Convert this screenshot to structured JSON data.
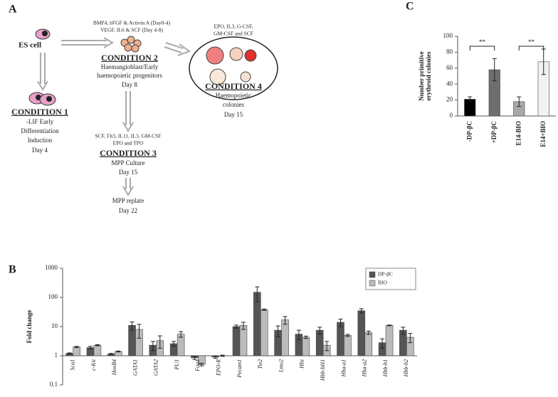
{
  "panel_a": {
    "panel_label": "A",
    "nodes": [
      {
        "lines": [
          "ES cell"
        ]
      },
      {
        "lines": [
          "BMP4, bFGF & Activin A (Day0-4)",
          "VEGF, IL6 & SCF (Day 4-8)"
        ]
      },
      {
        "lines": [
          "CONDITION 2",
          "Haemangioblast/Early",
          "haemopoietic progenitors",
          "Day 8"
        ]
      },
      {
        "lines": [
          "EPO, IL3, G-CSF,",
          "GM-CSF and SCF"
        ]
      },
      {
        "lines": [
          "CONDITION 4",
          "Haemopoietic",
          "colonies",
          "Day 15"
        ]
      },
      {
        "lines": [
          "CONDITION 1",
          "-LIF Early",
          "Differentiation",
          "Induction",
          "Day 4"
        ]
      },
      {
        "lines": [
          "SCF, Flt3, IL11, IL3, GM-CSF",
          "EPO and TPO"
        ]
      },
      {
        "lines": [
          "CONDITION 3",
          "MPP Culture",
          "Day 15"
        ]
      },
      {
        "lines": [
          "MPP replate",
          "Day 22"
        ]
      }
    ]
  },
  "chart_data": [
    {
      "type": "bar",
      "panel_label": "C",
      "ylabel": [
        "Number primitive",
        "erythroid colonies"
      ],
      "categories": [
        "-DP-βC",
        "+DP-βC",
        "E14-BIO",
        "E14+BIO"
      ],
      "values": [
        21,
        58,
        18,
        68
      ],
      "errors": [
        3,
        14,
        6,
        16
      ],
      "colors": [
        "#000000",
        "#6e6e6e",
        "#a8a8a8",
        "#f2f2f2"
      ],
      "ylim": [
        0,
        100
      ],
      "yticks": [
        0,
        20,
        40,
        60,
        80,
        100
      ],
      "annotations": [
        {
          "text": "**"
        },
        {
          "text": "**"
        }
      ]
    },
    {
      "type": "bar",
      "panel_label": "B",
      "ylabel": [
        "Fold change"
      ],
      "yscale": "log",
      "ylim": [
        0.1,
        1000
      ],
      "yticks": [
        0.1,
        1,
        10,
        100,
        1000
      ],
      "legend": "upper right",
      "categories": [
        "Sca1",
        "c-Kit",
        "HoxB4",
        "GATA1",
        "GATA2",
        "PU1",
        "Fog1",
        "EPO-R",
        "Pecam1",
        "Tie2",
        "Lmo2",
        "Hbz",
        "Hbb-bH1",
        "Hba-a1",
        "Hba-a2",
        "Hbb-b1",
        "Hbb-b2"
      ],
      "series": [
        {
          "name": "DP-βC",
          "color": "#555555",
          "values": [
            1.2,
            1.9,
            1.15,
            11,
            2.3,
            2.6,
            0.85,
            0.9,
            10,
            150,
            7.5,
            5.5,
            7.5,
            14,
            35,
            2.8,
            7.5
          ],
          "errors": [
            0.05,
            0.2,
            0.05,
            3.5,
            0.8,
            0.5,
            0.1,
            0.08,
            1.2,
            80,
            3,
            2,
            2,
            4,
            6,
            1,
            2
          ]
        },
        {
          "name": "BIO",
          "color": "#bbbbbb",
          "values": [
            2.0,
            2.3,
            1.4,
            8,
            3.3,
            5.5,
            0.5,
            1.0,
            11,
            38,
            17,
            4.3,
            2.3,
            5.0,
            6.2,
            11,
            4.3
          ],
          "errors": [
            0.1,
            0.1,
            0.05,
            4,
            1.5,
            1.2,
            0.05,
            0.05,
            3,
            2,
            5,
            0.4,
            0.8,
            0.4,
            0.8,
            0.3,
            1.5
          ]
        }
      ]
    }
  ]
}
